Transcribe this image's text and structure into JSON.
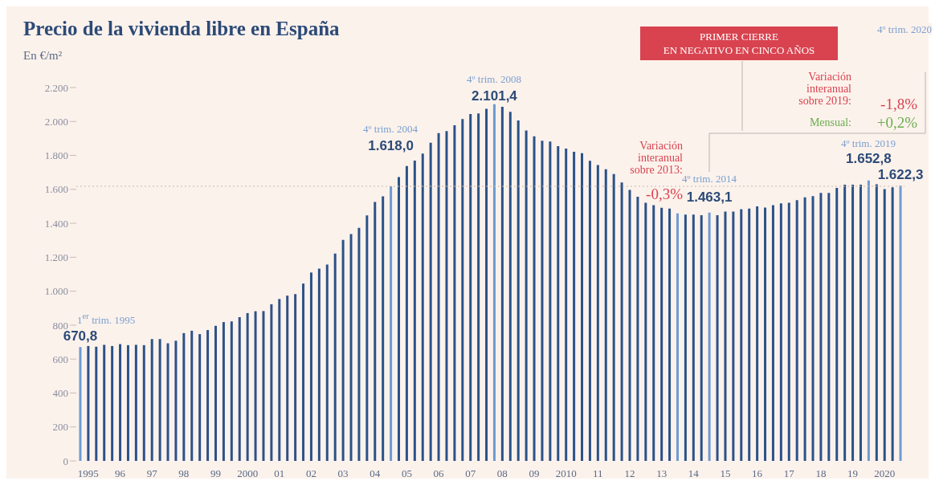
{
  "chart_data": {
    "type": "bar",
    "title": "Precio de la vivienda libre en España",
    "ylabel": "En €/m²",
    "categories": [
      null,
      "1995",
      null,
      null,
      null,
      "96",
      null,
      null,
      null,
      "97",
      null,
      null,
      null,
      "98",
      null,
      null,
      null,
      "99",
      null,
      null,
      null,
      "2000",
      null,
      null,
      null,
      "01",
      null,
      null,
      null,
      "02",
      null,
      null,
      null,
      "03",
      null,
      null,
      null,
      "04",
      null,
      null,
      null,
      "05",
      null,
      null,
      null,
      "06",
      null,
      null,
      null,
      "07",
      null,
      null,
      null,
      "08",
      null,
      null,
      null,
      "09",
      null,
      null,
      null,
      "2010",
      null,
      null,
      null,
      "11",
      null,
      null,
      null,
      "12",
      null,
      null,
      null,
      "13",
      null,
      null,
      null,
      "14",
      null,
      null,
      null,
      "15",
      null,
      null,
      null,
      "16",
      null,
      null,
      null,
      "17",
      null,
      null,
      null,
      "18",
      null,
      null,
      null,
      "19",
      null,
      null,
      null,
      "2020",
      null,
      null
    ],
    "values": [
      670.8,
      677,
      673,
      684,
      677,
      688,
      682,
      684,
      682,
      718,
      718,
      693,
      708,
      753,
      767,
      747,
      771,
      796,
      818,
      822,
      847,
      871,
      882,
      883,
      923,
      954,
      974,
      983,
      1045,
      1110,
      1133,
      1157,
      1222,
      1302,
      1336,
      1373,
      1446,
      1526,
      1559,
      1618.0,
      1672,
      1738,
      1770,
      1811,
      1875,
      1931,
      1943,
      1978,
      2014,
      2044,
      2048,
      2075,
      2101.4,
      2086,
      2057,
      2006,
      1947,
      1912,
      1887,
      1882,
      1855,
      1840,
      1822,
      1813,
      1768,
      1743,
      1719,
      1690,
      1641,
      1597,
      1557,
      1521,
      1507,
      1492,
      1487,
      1458,
      1451,
      1451,
      1448,
      1463.1,
      1448,
      1469,
      1469,
      1483,
      1487,
      1500,
      1493,
      1507,
      1518,
      1521,
      1536,
      1553,
      1560,
      1579,
      1579,
      1609,
      1627,
      1628,
      1628,
      1652.8,
      1630,
      1602,
      1612,
      1622.3
    ],
    "value_labels": [
      "670,8",
      null,
      null,
      null,
      null,
      null,
      null,
      null,
      null,
      null,
      null,
      null,
      null,
      null,
      null,
      null,
      null,
      null,
      null,
      null,
      null,
      null,
      null,
      null,
      null,
      null,
      null,
      null,
      null,
      null,
      null,
      null,
      null,
      null,
      null,
      null,
      null,
      null,
      null,
      "1.618,0",
      null,
      null,
      null,
      null,
      null,
      null,
      null,
      null,
      null,
      null,
      null,
      null,
      "2.101,4",
      null,
      null,
      null,
      null,
      null,
      null,
      null,
      null,
      null,
      null,
      null,
      null,
      null,
      null,
      null,
      null,
      null,
      null,
      null,
      null,
      null,
      null,
      null,
      null,
      null,
      null,
      "1.463,1",
      null,
      null,
      null,
      null,
      null,
      null,
      null,
      null,
      null,
      null,
      null,
      null,
      null,
      null,
      null,
      null,
      null,
      null,
      null,
      "1.652,8",
      null,
      null,
      null,
      "1.622,3"
    ],
    "colors": [
      "#6d9bd1",
      "#2b5288",
      "#2b5288",
      "#2b5288",
      "#2b5288",
      "#2b5288",
      "#2b5288",
      "#2b5288",
      "#2b5288",
      "#2b5288",
      "#2b5288",
      "#2b5288",
      "#2b5288",
      "#2b5288",
      "#2b5288",
      "#2b5288",
      "#2b5288",
      "#2b5288",
      "#2b5288",
      "#2b5288",
      "#2b5288",
      "#2b5288",
      "#2b5288",
      "#2b5288",
      "#2b5288",
      "#2b5288",
      "#2b5288",
      "#2b5288",
      "#2b5288",
      "#2b5288",
      "#2b5288",
      "#2b5288",
      "#2b5288",
      "#2b5288",
      "#2b5288",
      "#2b5288",
      "#2b5288",
      "#2b5288",
      "#2b5288",
      "#6d9bd1",
      "#2b5288",
      "#2b5288",
      "#2b5288",
      "#2b5288",
      "#2b5288",
      "#2b5288",
      "#2b5288",
      "#2b5288",
      "#2b5288",
      "#2b5288",
      "#2b5288",
      "#2b5288",
      "#6d9bd1",
      "#2b5288",
      "#2b5288",
      "#2b5288",
      "#2b5288",
      "#2b5288",
      "#2b5288",
      "#2b5288",
      "#2b5288",
      "#2b5288",
      "#2b5288",
      "#2b5288",
      "#2b5288",
      "#2b5288",
      "#2b5288",
      "#2b5288",
      "#2b5288",
      "#2b5288",
      "#2b5288",
      "#2b5288",
      "#2b5288",
      "#2b5288",
      "#2b5288",
      "#6d9bd1",
      "#2b5288",
      "#2b5288",
      "#2b5288",
      "#6d9bd1",
      "#2b5288",
      "#2b5288",
      "#2b5288",
      "#2b5288",
      "#2b5288",
      "#2b5288",
      "#2b5288",
      "#2b5288",
      "#2b5288",
      "#2b5288",
      "#2b5288",
      "#2b5288",
      "#2b5288",
      "#2b5288",
      "#2b5288",
      "#2b5288",
      "#2b5288",
      "#2b5288",
      "#2b5288",
      "#6d9bd1",
      "#2b5288",
      "#2b5288",
      "#2b5288",
      "#6d9bd1"
    ],
    "ylim": [
      0,
      2200
    ],
    "yticks": [
      0,
      200,
      400,
      600,
      800,
      {
        "value": 1000,
        "label": "1.000"
      },
      {
        "value": 1200,
        "label": "1.200"
      },
      {
        "value": 1400,
        "label": "1.400"
      },
      {
        "value": 1600,
        "label": "1.600"
      },
      {
        "value": 1800,
        "label": "1.800"
      },
      {
        "value": 2000,
        "label": "2.000"
      },
      {
        "value": 2200,
        "label": "2.200"
      }
    ],
    "ref_lines": [
      {
        "axis": "y",
        "value": 1618,
        "color": "#c8b8ae",
        "line_style": "dotted"
      }
    ],
    "annotations": [
      "1$^{er}$ trim. 1995",
      "4º trim. 2004",
      "4º trim. 2008",
      "4º trim. 2014",
      "4º trim. 2019",
      "4º trim. 2020",
      "PRIMER CIERRE\nEN NEGATIVO EN CINCO AÑOS",
      "Variación\ninteranual\nsobre 2013:",
      "-0,3%",
      "Variación\ninteranual\nsobre 2019:",
      "-1,8%",
      "Mensual:",
      "+0,2%"
    ]
  }
}
